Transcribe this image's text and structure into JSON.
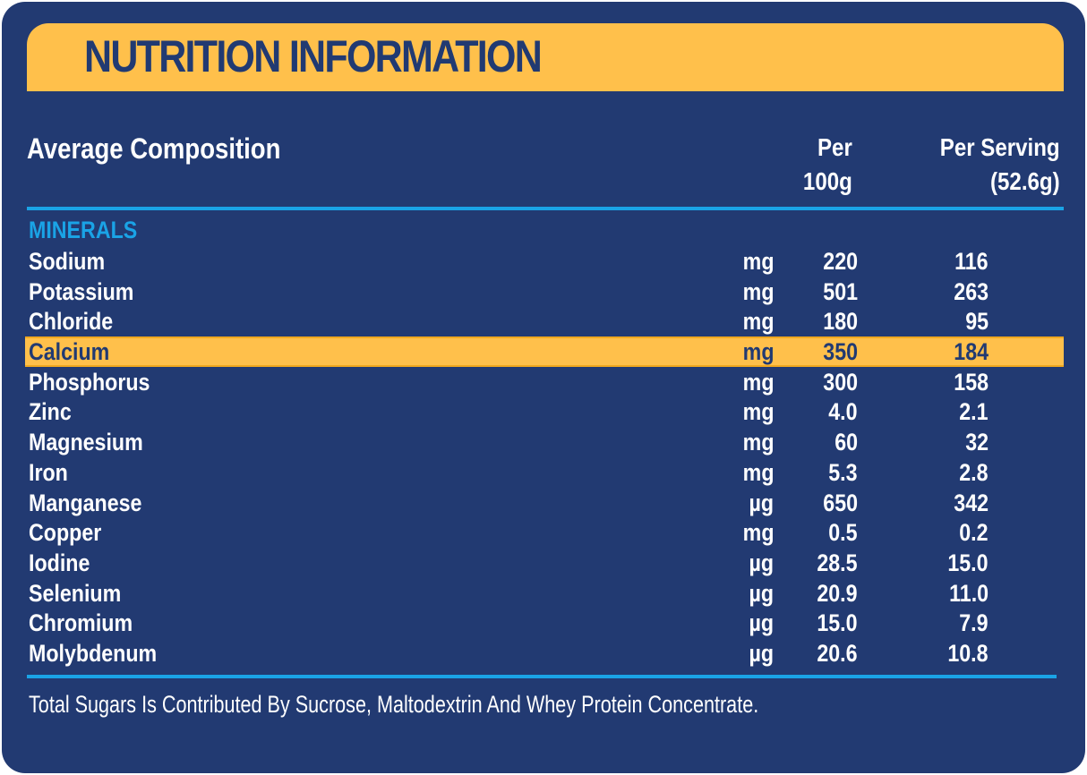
{
  "title": "NUTRITION INFORMATION",
  "header": {
    "composition_label": "Average Composition",
    "per100_line1": "Per",
    "per100_line2": "100g",
    "serving_line1": "Per Serving",
    "serving_line2": "(52.6g)"
  },
  "section_label": "MINERALS",
  "rows": [
    {
      "name": "Sodium",
      "unit": "mg",
      "per100": "220",
      "serving": "116"
    },
    {
      "name": "Potassium",
      "unit": "mg",
      "per100": "501",
      "serving": "263"
    },
    {
      "name": "Chloride",
      "unit": "mg",
      "per100": "180",
      "serving": "95"
    },
    {
      "name": "Calcium",
      "unit": "mg",
      "per100": "350",
      "serving": "184"
    },
    {
      "name": "Phosphorus",
      "unit": "mg",
      "per100": "300",
      "serving": "158"
    },
    {
      "name": "Zinc",
      "unit": "mg",
      "per100": "4.0",
      "serving": "2.1"
    },
    {
      "name": "Magnesium",
      "unit": "mg",
      "per100": "60",
      "serving": "32"
    },
    {
      "name": "Iron",
      "unit": "mg",
      "per100": "5.3",
      "serving": "2.8"
    },
    {
      "name": "Manganese",
      "unit": "µg",
      "per100": "650",
      "serving": "342"
    },
    {
      "name": "Copper",
      "unit": "mg",
      "per100": "0.5",
      "serving": "0.2"
    },
    {
      "name": "Iodine",
      "unit": "µg",
      "per100": "28.5",
      "serving": "15.0"
    },
    {
      "name": "Selenium",
      "unit": "µg",
      "per100": "20.9",
      "serving": "11.0"
    },
    {
      "name": "Chromium",
      "unit": "µg",
      "per100": "15.0",
      "serving": "7.9"
    },
    {
      "name": "Molybdenum",
      "unit": "µg",
      "per100": "20.6",
      "serving": "10.8"
    }
  ],
  "highlighted_row": "Calcium",
  "footnote": "Total Sugars Is Contributed By Sucrose, Maltodextrin And Whey Protein Concentrate.",
  "colors": {
    "background": "#223a72",
    "accent_band": "#ffc04b",
    "rule": "#1aa3e6",
    "section_label": "#1aa3e6"
  }
}
